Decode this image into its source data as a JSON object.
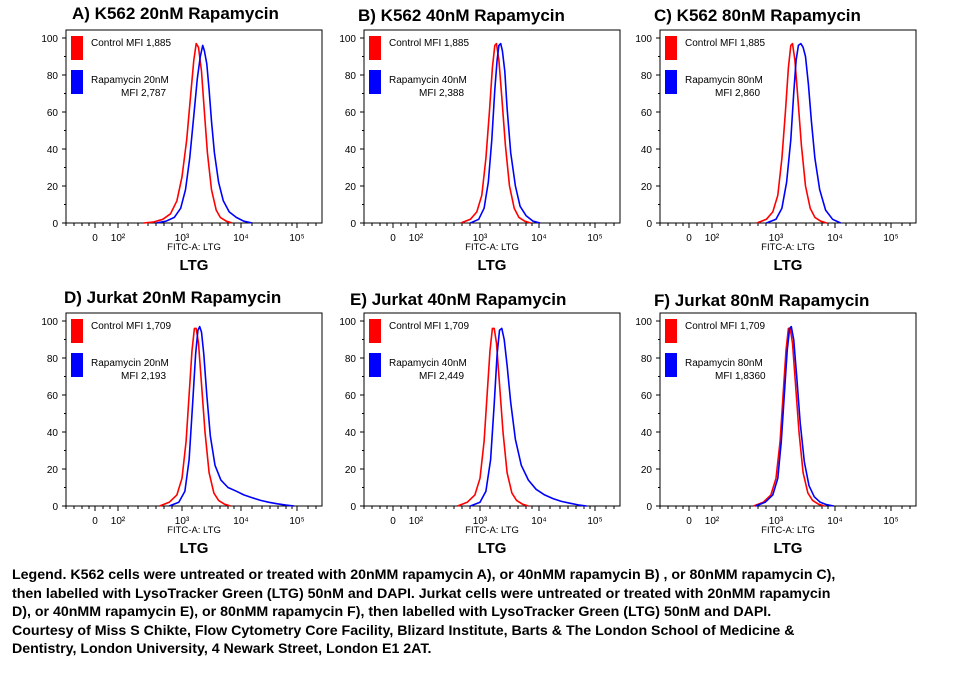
{
  "chart_data": [
    {
      "type": "area",
      "title": "A) K562 20nM Rapamycin",
      "xlabel": "FITC-A: LTG",
      "xtitle": "LTG",
      "yticks": [
        "0",
        "20",
        "40",
        "60",
        "80",
        "100"
      ],
      "xticks": [
        "0",
        "10²",
        "10³",
        "10⁴",
        "10⁵"
      ],
      "ylim": [
        0,
        100
      ],
      "legend": [
        {
          "label": "Control MFI 1,885",
          "color": "#ff0000"
        },
        {
          "label": "Rapamycin 20nM",
          "label2": "MFI 2,787",
          "color": "#0000ff"
        }
      ],
      "series": [
        {
          "name": "Control MFI 1,885",
          "color": "#ff0000",
          "x": [
            2.4,
            2.55,
            2.7,
            2.82,
            2.92,
            3.0,
            3.08,
            3.15,
            3.2,
            3.24,
            3.28,
            3.33,
            3.38,
            3.43,
            3.5,
            3.58,
            3.65,
            3.75,
            3.85
          ],
          "y": [
            0,
            0.5,
            2,
            5,
            12,
            25,
            45,
            70,
            88,
            97,
            95,
            82,
            60,
            38,
            18,
            7,
            3,
            1,
            0
          ]
        },
        {
          "name": "Rapamycin 20nM MFI 2,787",
          "color": "#0000ff",
          "x": [
            2.6,
            2.75,
            2.88,
            2.98,
            3.06,
            3.13,
            3.2,
            3.26,
            3.31,
            3.35,
            3.38,
            3.42,
            3.46,
            3.5,
            3.55,
            3.62,
            3.7,
            3.8,
            3.92,
            4.05,
            4.2
          ],
          "y": [
            0,
            1,
            3,
            8,
            18,
            35,
            58,
            78,
            90,
            96,
            93,
            86,
            72,
            55,
            38,
            22,
            12,
            6,
            3,
            1,
            0
          ]
        }
      ]
    },
    {
      "type": "area",
      "title": "B) K562 40nM Rapamycin",
      "xlabel": "FITC-A: LTG",
      "xtitle": "LTG",
      "yticks": [
        "0",
        "20",
        "40",
        "60",
        "80",
        "100"
      ],
      "xticks": [
        "0",
        "10²",
        "10³",
        "10⁴",
        "10⁵"
      ],
      "ylim": [
        0,
        100
      ],
      "legend": [
        {
          "label": "Control MFI 1,885",
          "color": "#ff0000"
        },
        {
          "label": "Rapamycin 40nM",
          "label2": "MFI 2,388",
          "color": "#0000ff"
        }
      ],
      "series": [
        {
          "name": "Control MFI 1,885",
          "color": "#ff0000",
          "x": [
            2.7,
            2.85,
            2.95,
            3.03,
            3.1,
            3.16,
            3.21,
            3.25,
            3.28,
            3.32,
            3.37,
            3.43,
            3.5,
            3.58,
            3.66,
            3.76,
            3.86
          ],
          "y": [
            0,
            2,
            6,
            15,
            35,
            60,
            84,
            96,
            97,
            88,
            68,
            42,
            20,
            8,
            3,
            1,
            0
          ]
        },
        {
          "name": "Rapamycin 40nM MFI 2,388",
          "color": "#0000ff",
          "x": [
            2.85,
            2.98,
            3.07,
            3.14,
            3.2,
            3.25,
            3.29,
            3.32,
            3.35,
            3.38,
            3.42,
            3.46,
            3.52,
            3.6,
            3.68,
            3.78,
            3.9,
            4.02
          ],
          "y": [
            0,
            2,
            8,
            22,
            45,
            72,
            88,
            96,
            97,
            93,
            82,
            62,
            38,
            20,
            9,
            4,
            1,
            0
          ]
        }
      ]
    },
    {
      "type": "area",
      "title": "C) K562 80nM Rapamycin",
      "xlabel": "FITC-A: LTG",
      "xtitle": "LTG",
      "yticks": [
        "0",
        "20",
        "40",
        "60",
        "80",
        "100"
      ],
      "xticks": [
        "0",
        "10²",
        "10³",
        "10⁴",
        "10⁵"
      ],
      "ylim": [
        0,
        100
      ],
      "legend": [
        {
          "label": "Control MFI 1,885",
          "color": "#ff0000"
        },
        {
          "label": "Rapamycin 80nM",
          "label2": "MFI 2,860",
          "color": "#0000ff"
        }
      ],
      "series": [
        {
          "name": "Control MFI 1,885",
          "color": "#ff0000",
          "x": [
            2.7,
            2.85,
            2.95,
            3.03,
            3.1,
            3.16,
            3.21,
            3.25,
            3.28,
            3.32,
            3.37,
            3.43,
            3.5,
            3.58,
            3.66,
            3.76,
            3.86
          ],
          "y": [
            0,
            2,
            6,
            15,
            35,
            60,
            84,
            96,
            97,
            88,
            68,
            42,
            20,
            8,
            3,
            1,
            0
          ]
        },
        {
          "name": "Rapamycin 80nM MFI 2,860",
          "color": "#0000ff",
          "x": [
            2.85,
            3.0,
            3.1,
            3.18,
            3.25,
            3.3,
            3.34,
            3.38,
            3.42,
            3.46,
            3.5,
            3.55,
            3.6,
            3.66,
            3.74,
            3.84,
            3.96,
            4.1
          ],
          "y": [
            0,
            2,
            8,
            22,
            45,
            70,
            88,
            96,
            97,
            95,
            90,
            75,
            55,
            35,
            18,
            7,
            2,
            0
          ]
        }
      ]
    },
    {
      "type": "area",
      "title": "D) Jurkat 20nM Rapamycin",
      "xlabel": "FITC-A: LTG",
      "xtitle": "LTG",
      "yticks": [
        "0",
        "20",
        "40",
        "60",
        "80",
        "100"
      ],
      "xticks": [
        "0",
        "10²",
        "10³",
        "10⁴",
        "10⁵"
      ],
      "ylim": [
        0,
        100
      ],
      "legend": [
        {
          "label": "Control MFI 1,709",
          "color": "#ff0000"
        },
        {
          "label": "Rapamycin 20nM",
          "label2": "MFI 2,193",
          "color": "#0000ff"
        }
      ],
      "series": [
        {
          "name": "Control MFI 1,709",
          "color": "#ff0000",
          "x": [
            2.65,
            2.8,
            2.92,
            3.0,
            3.07,
            3.12,
            3.17,
            3.21,
            3.24,
            3.28,
            3.33,
            3.39,
            3.46,
            3.54,
            3.62,
            3.72,
            3.82
          ],
          "y": [
            0,
            2,
            6,
            15,
            35,
            60,
            84,
            96,
            96,
            88,
            66,
            40,
            18,
            7,
            3,
            1,
            0
          ]
        },
        {
          "name": "Rapamycin 20nM MFI 2,193",
          "color": "#0000ff",
          "x": [
            2.8,
            2.95,
            3.05,
            3.12,
            3.18,
            3.23,
            3.27,
            3.3,
            3.33,
            3.37,
            3.42,
            3.48,
            3.56,
            3.66,
            3.78,
            3.92,
            4.05,
            4.2,
            4.35,
            4.5,
            4.65,
            4.8,
            4.95
          ],
          "y": [
            0,
            2,
            8,
            25,
            55,
            82,
            95,
            97,
            94,
            82,
            60,
            38,
            22,
            14,
            10,
            8,
            6,
            4.5,
            3,
            2,
            1.2,
            0.5,
            0
          ]
        }
      ]
    },
    {
      "type": "area",
      "title": "E) Jurkat 40nM Rapamycin",
      "xlabel": "FITC-A: LTG",
      "xtitle": "LTG",
      "yticks": [
        "0",
        "20",
        "40",
        "60",
        "80",
        "100"
      ],
      "xticks": [
        "0",
        "10²",
        "10³",
        "10⁴",
        "10⁵"
      ],
      "ylim": [
        0,
        100
      ],
      "legend": [
        {
          "label": "Control MFI 1,709",
          "color": "#ff0000"
        },
        {
          "label": "Rapamycin 40nM",
          "label2": "MFI 2,449",
          "color": "#0000ff"
        }
      ],
      "series": [
        {
          "name": "Control MFI 1,709",
          "color": "#ff0000",
          "x": [
            2.65,
            2.8,
            2.92,
            3.0,
            3.07,
            3.12,
            3.17,
            3.21,
            3.24,
            3.28,
            3.33,
            3.39,
            3.46,
            3.54,
            3.62,
            3.72,
            3.82
          ],
          "y": [
            0,
            2,
            6,
            15,
            35,
            60,
            84,
            96,
            96,
            88,
            66,
            40,
            18,
            7,
            3,
            1,
            0
          ]
        },
        {
          "name": "Rapamycin 40nM MFI 2,449",
          "color": "#0000ff",
          "x": [
            2.85,
            3.0,
            3.1,
            3.18,
            3.24,
            3.29,
            3.33,
            3.37,
            3.41,
            3.46,
            3.52,
            3.6,
            3.7,
            3.82,
            3.95,
            4.1,
            4.25,
            4.4,
            4.55,
            4.7,
            4.85
          ],
          "y": [
            0,
            2,
            8,
            25,
            55,
            82,
            95,
            96,
            90,
            76,
            56,
            36,
            22,
            14,
            9,
            6,
            4,
            2.5,
            1.5,
            0.6,
            0
          ]
        }
      ]
    },
    {
      "type": "area",
      "title": "F) Jurkat 80nM Rapamycin",
      "xlabel": "FITC-A: LTG",
      "xtitle": "LTG",
      "yticks": [
        "0",
        "20",
        "40",
        "60",
        "80",
        "100"
      ],
      "xticks": [
        "0",
        "10²",
        "10³",
        "10⁴",
        "10⁵"
      ],
      "ylim": [
        0,
        100
      ],
      "legend": [
        {
          "label": "Control MFI 1,709",
          "color": "#ff0000"
        },
        {
          "label": "Rapamycin 80nM",
          "label2": "MFI 1,8360",
          "color": "#0000ff"
        }
      ],
      "series": [
        {
          "name": "Control MFI 1,709",
          "color": "#ff0000",
          "x": [
            2.65,
            2.8,
            2.92,
            3.0,
            3.07,
            3.12,
            3.17,
            3.21,
            3.24,
            3.28,
            3.33,
            3.39,
            3.46,
            3.54,
            3.62,
            3.72,
            3.82
          ],
          "y": [
            0,
            2,
            6,
            15,
            35,
            60,
            84,
            96,
            96,
            88,
            66,
            40,
            18,
            7,
            3,
            1,
            0
          ]
        },
        {
          "name": "Rapamycin 80nM MFI 1,8360",
          "color": "#0000ff",
          "x": [
            2.68,
            2.83,
            2.95,
            3.03,
            3.09,
            3.14,
            3.19,
            3.23,
            3.26,
            3.3,
            3.35,
            3.41,
            3.48,
            3.56,
            3.65,
            3.75,
            3.86,
            3.98
          ],
          "y": [
            0,
            2,
            6,
            15,
            35,
            60,
            84,
            96,
            97,
            90,
            70,
            45,
            24,
            11,
            5,
            2,
            0.7,
            0
          ]
        }
      ]
    }
  ],
  "caption": {
    "lines": [
      "Legend.  K562 cells were untreated or treated with 20nMM rapamycin A), or 40nMM rapamycin B) , or 80nMM rapamycin C),",
      "then labelled with LysoTracker Green (LTG) 50nM and DAPI. Jurkat cells were untreated or treated with 20nMM rapamycin",
      "D), or 40nMM rapamycin E), or 80nMM rapamycin F), then labelled with LysoTracker Green (LTG) 50nM and DAPI.",
      "Courtesy of  Miss S Chikte, Flow  Cytometry Core Facility, Blizard Institute, Barts & The London School of Medicine &",
      "Dentistry, London University, 4 Newark Street, London E1 2AT."
    ]
  }
}
